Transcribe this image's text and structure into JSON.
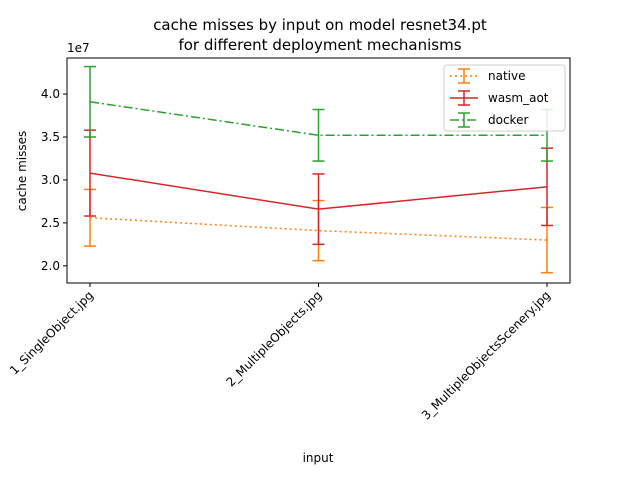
{
  "chart_data": {
    "type": "line",
    "title": "cache misses by input on model resnet34.pt",
    "subtitle": "for different deployment mechanisms",
    "xlabel": "input",
    "ylabel": "cache misses",
    "y_offset_label": "1e7",
    "categories": [
      "1_SingleObject.jpg",
      "2_MultipleObjects.jpg",
      "3_MultipleObjectsScenery.jpg"
    ],
    "ylim": [
      18000000,
      44200000
    ],
    "yticks": [
      20000000,
      25000000,
      30000000,
      35000000,
      40000000
    ],
    "ytick_labels": [
      "2.0",
      "2.5",
      "3.0",
      "3.5",
      "4.0"
    ],
    "grid": false,
    "legend_position": "top-right",
    "series": [
      {
        "name": "native",
        "color": "#ff7f0e",
        "style": "dotted",
        "values": [
          25600000,
          24100000,
          23000000
        ],
        "errors": [
          3300000,
          3500000,
          3800000
        ]
      },
      {
        "name": "wasm_aot",
        "color": "#d62728",
        "style": "solid",
        "values": [
          30800000,
          26600000,
          29200000
        ],
        "errors": [
          5000000,
          4100000,
          4500000
        ]
      },
      {
        "name": "docker",
        "color": "#2ca02c",
        "style": "dashdot",
        "values": [
          39100000,
          35200000,
          35200000
        ],
        "errors": [
          4100000,
          3000000,
          3000000
        ]
      }
    ]
  }
}
